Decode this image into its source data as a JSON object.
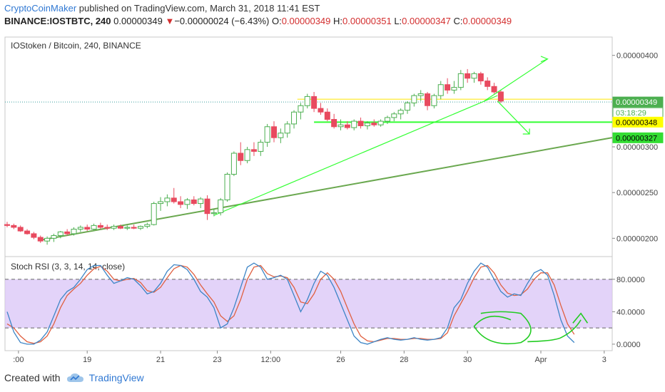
{
  "header": {
    "author": "CryptoCoinMaker",
    "published_text": " published on TradingView.com, March 31, 2018 11:41 EST",
    "symbol": "BINANCE:IOSTBTC, 240",
    "last": "0.00000349",
    "change_arrow": "▼",
    "change": "−0.00000024 (−6.43%)",
    "o_label": "O:",
    "o_value": "0.00000349",
    "h_label": "H:",
    "h_value": "0.00000351",
    "l_label": "L:",
    "l_value": "0.00000347",
    "c_label": "C:",
    "c_value": "0.00000349"
  },
  "footer": {
    "created_with": "Created with",
    "brand": "TradingView"
  },
  "colors": {
    "up": "#4caf50",
    "down": "#e84a5f",
    "trend": "#6aa84f",
    "line": "#33ff33",
    "stoch_k": "#3d85c6",
    "stoch_d": "#e06040",
    "band": "#d9c4f7",
    "brand": "#3179d3"
  },
  "chart_data": [
    {
      "type": "candlestick",
      "title": "IOStoken / Bitcoin, 240, BINANCE",
      "y_range": [
        1.8e-06,
        4.2e-06
      ],
      "y_ticks": [
        2e-06,
        2.5e-06,
        3e-06,
        4e-06
      ],
      "y_tick_labels": [
        "0.00000200",
        "0.00000250",
        "0.00000300",
        "0.00000400"
      ],
      "x_ticks": [
        1.7,
        12,
        23,
        31.5,
        39.5,
        50,
        59.5,
        69,
        80,
        89.5
      ],
      "x_tick_labels": [
        ":00",
        "19",
        "21",
        "23",
        "12:00",
        "26",
        "28",
        "30",
        "Apr",
        "3"
      ],
      "candles": [
        {
          "o": 2.15,
          "h": 2.18,
          "l": 2.12,
          "c": 2.14
        },
        {
          "o": 2.14,
          "h": 2.16,
          "l": 2.1,
          "c": 2.12
        },
        {
          "o": 2.12,
          "h": 2.14,
          "l": 2.07,
          "c": 2.08
        },
        {
          "o": 2.08,
          "h": 2.1,
          "l": 2.04,
          "c": 2.05
        },
        {
          "o": 2.05,
          "h": 2.07,
          "l": 1.99,
          "c": 2.01
        },
        {
          "o": 2.01,
          "h": 2.03,
          "l": 1.95,
          "c": 1.97
        },
        {
          "o": 1.97,
          "h": 2.02,
          "l": 1.93,
          "c": 2.0
        },
        {
          "o": 2.0,
          "h": 2.05,
          "l": 1.96,
          "c": 2.03
        },
        {
          "o": 2.03,
          "h": 2.08,
          "l": 2.0,
          "c": 2.07
        },
        {
          "o": 2.07,
          "h": 2.1,
          "l": 2.03,
          "c": 2.05
        },
        {
          "o": 2.05,
          "h": 2.12,
          "l": 2.03,
          "c": 2.1
        },
        {
          "o": 2.1,
          "h": 2.14,
          "l": 2.07,
          "c": 2.12
        },
        {
          "o": 2.12,
          "h": 2.15,
          "l": 2.08,
          "c": 2.1
        },
        {
          "o": 2.1,
          "h": 2.16,
          "l": 2.08,
          "c": 2.14
        },
        {
          "o": 2.14,
          "h": 2.17,
          "l": 2.1,
          "c": 2.12
        },
        {
          "o": 2.12,
          "h": 2.15,
          "l": 2.09,
          "c": 2.11
        },
        {
          "o": 2.11,
          "h": 2.15,
          "l": 2.09,
          "c": 2.13
        },
        {
          "o": 2.13,
          "h": 2.15,
          "l": 2.1,
          "c": 2.11
        },
        {
          "o": 2.11,
          "h": 2.14,
          "l": 2.09,
          "c": 2.12
        },
        {
          "o": 2.12,
          "h": 2.15,
          "l": 2.1,
          "c": 2.11
        },
        {
          "o": 2.11,
          "h": 2.14,
          "l": 2.09,
          "c": 2.13
        },
        {
          "o": 2.13,
          "h": 2.17,
          "l": 2.11,
          "c": 2.15
        },
        {
          "o": 2.15,
          "h": 2.4,
          "l": 2.14,
          "c": 2.38
        },
        {
          "o": 2.38,
          "h": 2.45,
          "l": 2.3,
          "c": 2.4
        },
        {
          "o": 2.4,
          "h": 2.48,
          "l": 2.35,
          "c": 2.44
        },
        {
          "o": 2.44,
          "h": 2.55,
          "l": 2.38,
          "c": 2.4
        },
        {
          "o": 2.4,
          "h": 2.46,
          "l": 2.33,
          "c": 2.37
        },
        {
          "o": 2.37,
          "h": 2.44,
          "l": 2.32,
          "c": 2.42
        },
        {
          "o": 2.42,
          "h": 2.46,
          "l": 2.36,
          "c": 2.38
        },
        {
          "o": 2.38,
          "h": 2.45,
          "l": 2.33,
          "c": 2.43
        },
        {
          "o": 2.43,
          "h": 2.47,
          "l": 2.2,
          "c": 2.27
        },
        {
          "o": 2.27,
          "h": 2.32,
          "l": 2.24,
          "c": 2.28
        },
        {
          "o": 2.28,
          "h": 2.44,
          "l": 2.25,
          "c": 2.42
        },
        {
          "o": 2.42,
          "h": 2.72,
          "l": 2.4,
          "c": 2.7
        },
        {
          "o": 2.7,
          "h": 2.95,
          "l": 2.68,
          "c": 2.93
        },
        {
          "o": 2.93,
          "h": 3.05,
          "l": 2.8,
          "c": 2.85
        },
        {
          "o": 2.85,
          "h": 3.0,
          "l": 2.82,
          "c": 2.97
        },
        {
          "o": 2.97,
          "h": 3.05,
          "l": 2.9,
          "c": 2.95
        },
        {
          "o": 2.95,
          "h": 3.08,
          "l": 2.9,
          "c": 3.05
        },
        {
          "o": 3.05,
          "h": 3.25,
          "l": 3.0,
          "c": 3.22
        },
        {
          "o": 3.22,
          "h": 3.28,
          "l": 3.05,
          "c": 3.1
        },
        {
          "o": 3.1,
          "h": 3.2,
          "l": 3.04,
          "c": 3.15
        },
        {
          "o": 3.15,
          "h": 3.28,
          "l": 3.1,
          "c": 3.25
        },
        {
          "o": 3.25,
          "h": 3.4,
          "l": 3.2,
          "c": 3.38
        },
        {
          "o": 3.38,
          "h": 3.48,
          "l": 3.3,
          "c": 3.45
        },
        {
          "o": 3.45,
          "h": 3.58,
          "l": 3.42,
          "c": 3.55
        },
        {
          "o": 3.55,
          "h": 3.6,
          "l": 3.38,
          "c": 3.42
        },
        {
          "o": 3.42,
          "h": 3.48,
          "l": 3.35,
          "c": 3.38
        },
        {
          "o": 3.38,
          "h": 3.42,
          "l": 3.28,
          "c": 3.3
        },
        {
          "o": 3.3,
          "h": 3.36,
          "l": 3.2,
          "c": 3.22
        },
        {
          "o": 3.22,
          "h": 3.3,
          "l": 3.18,
          "c": 3.24
        },
        {
          "o": 3.24,
          "h": 3.28,
          "l": 3.19,
          "c": 3.21
        },
        {
          "o": 3.21,
          "h": 3.3,
          "l": 3.18,
          "c": 3.28
        },
        {
          "o": 3.28,
          "h": 3.32,
          "l": 3.2,
          "c": 3.23
        },
        {
          "o": 3.23,
          "h": 3.28,
          "l": 3.19,
          "c": 3.26
        },
        {
          "o": 3.26,
          "h": 3.3,
          "l": 3.22,
          "c": 3.24
        },
        {
          "o": 3.24,
          "h": 3.3,
          "l": 3.22,
          "c": 3.28
        },
        {
          "o": 3.28,
          "h": 3.34,
          "l": 3.25,
          "c": 3.32
        },
        {
          "o": 3.32,
          "h": 3.38,
          "l": 3.28,
          "c": 3.36
        },
        {
          "o": 3.36,
          "h": 3.42,
          "l": 3.3,
          "c": 3.4
        },
        {
          "o": 3.4,
          "h": 3.5,
          "l": 3.36,
          "c": 3.48
        },
        {
          "o": 3.48,
          "h": 3.58,
          "l": 3.44,
          "c": 3.56
        },
        {
          "o": 3.56,
          "h": 3.62,
          "l": 3.5,
          "c": 3.58
        },
        {
          "o": 3.58,
          "h": 3.6,
          "l": 3.4,
          "c": 3.45
        },
        {
          "o": 3.45,
          "h": 3.58,
          "l": 3.42,
          "c": 3.56
        },
        {
          "o": 3.56,
          "h": 3.72,
          "l": 3.52,
          "c": 3.68
        },
        {
          "o": 3.68,
          "h": 3.75,
          "l": 3.58,
          "c": 3.62
        },
        {
          "o": 3.62,
          "h": 3.72,
          "l": 3.58,
          "c": 3.65
        },
        {
          "o": 3.65,
          "h": 3.84,
          "l": 3.62,
          "c": 3.8
        },
        {
          "o": 3.8,
          "h": 3.85,
          "l": 3.7,
          "c": 3.75
        },
        {
          "o": 3.75,
          "h": 3.82,
          "l": 3.7,
          "c": 3.8
        },
        {
          "o": 3.8,
          "h": 3.82,
          "l": 3.68,
          "c": 3.72
        },
        {
          "o": 3.72,
          "h": 3.76,
          "l": 3.62,
          "c": 3.66
        },
        {
          "o": 3.66,
          "h": 3.7,
          "l": 3.58,
          "c": 3.6
        },
        {
          "o": 3.6,
          "h": 3.62,
          "l": 3.48,
          "c": 3.5
        }
      ],
      "price_labels": [
        "0.00000349",
        "03:18:29",
        "0.00000348",
        "0.00000327"
      ]
    },
    {
      "type": "line",
      "title": "Stoch RSI (3, 3, 14, 14, close)",
      "y_range": [
        -8,
        108
      ],
      "y_ticks": [
        0,
        40,
        80
      ],
      "y_tick_labels": [
        "0.0000",
        "40.0000",
        "80.0000"
      ],
      "band": [
        20,
        80
      ],
      "series": [
        {
          "values": [
            40,
            15,
            2,
            0,
            0,
            5,
            15,
            35,
            55,
            65,
            70,
            80,
            92,
            97,
            97,
            85,
            75,
            78,
            82,
            80,
            72,
            62,
            65,
            75,
            90,
            98,
            97,
            92,
            80,
            65,
            58,
            45,
            20,
            25,
            45,
            70,
            95,
            100,
            95,
            80,
            82,
            85,
            80,
            60,
            40,
            55,
            75,
            90,
            85,
            70,
            50,
            30,
            10,
            2,
            0,
            3,
            6,
            8,
            6,
            5,
            6,
            8,
            6,
            5,
            6,
            8,
            20,
            45,
            55,
            75,
            90,
            100,
            95,
            80,
            65,
            58,
            62,
            60,
            75,
            88,
            92,
            85,
            60,
            30,
            10,
            2
          ]
        },
        {
          "values": [
            25,
            20,
            10,
            3,
            1,
            3,
            10,
            25,
            45,
            60,
            68,
            75,
            85,
            93,
            96,
            90,
            80,
            78,
            80,
            81,
            76,
            66,
            64,
            70,
            82,
            93,
            97,
            95,
            86,
            73,
            62,
            52,
            35,
            28,
            35,
            55,
            80,
            95,
            97,
            87,
            83,
            84,
            82,
            70,
            52,
            50,
            62,
            80,
            88,
            80,
            65,
            45,
            25,
            10,
            4,
            3,
            5,
            7,
            7,
            6,
            6,
            7,
            7,
            6,
            6,
            7,
            14,
            35,
            50,
            65,
            82,
            95,
            97,
            88,
            73,
            63,
            60,
            61,
            68,
            80,
            88,
            88,
            73,
            48,
            25,
            12
          ]
        }
      ]
    }
  ]
}
